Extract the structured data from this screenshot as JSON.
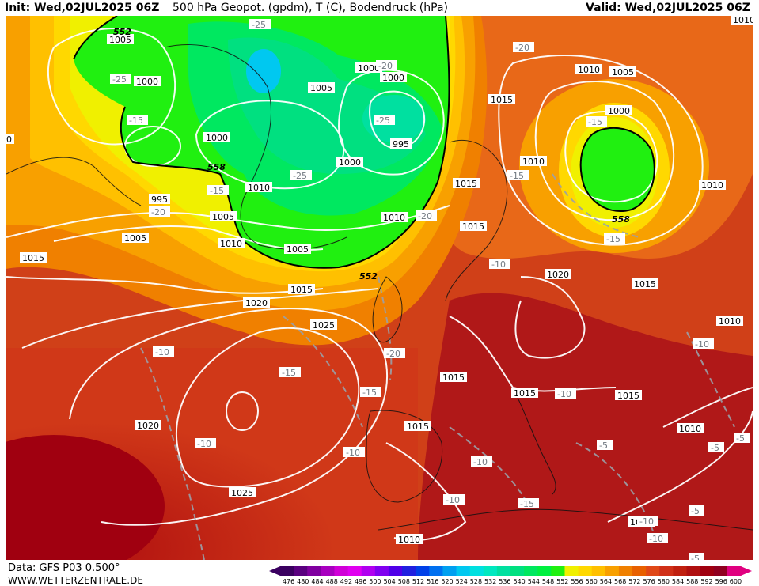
{
  "header": {
    "init": "Init: Wed,02JUL2025 06Z",
    "title": "500 hPa Geopot. (gpdm), T (C), Bodendruck (hPa)",
    "valid": "Valid: Wed,02JUL2025 06Z"
  },
  "footer": {
    "source": "Data: GFS P03 0.500°",
    "website": "WWW.WETTERZENTRALE.DE"
  },
  "legend": {
    "ticks": [
      "476",
      "480",
      "484",
      "488",
      "492",
      "496",
      "500",
      "504",
      "508",
      "512",
      "516",
      "520",
      "524",
      "528",
      "532",
      "536",
      "540",
      "544",
      "548",
      "552",
      "556",
      "560",
      "564",
      "568",
      "572",
      "576",
      "580",
      "584",
      "588",
      "592",
      "596",
      "600"
    ],
    "colors": [
      "#3a0060",
      "#5a0080",
      "#8000a0",
      "#a800c0",
      "#d000d8",
      "#e000f0",
      "#b000f0",
      "#8000f0",
      "#5000e8",
      "#2020e0",
      "#0040e8",
      "#0070f0",
      "#00a0f0",
      "#00c8f0",
      "#00e0e0",
      "#00e8c0",
      "#00e0a0",
      "#00e080",
      "#00e860",
      "#00f040",
      "#20f010",
      "#f0f000",
      "#ffd800",
      "#ffc000",
      "#f8a000",
      "#f08000",
      "#e86000",
      "#e04818",
      "#d03018",
      "#c02010",
      "#b01010",
      "#a00010",
      "#900020",
      "#e00080"
    ]
  },
  "map_labels": {
    "isobars": [
      "1005",
      "1000",
      "1000",
      "1000",
      "1005",
      "1000",
      "1010",
      "995",
      "1000",
      "1010",
      "1005",
      "1010",
      "1015",
      "1010",
      "995",
      "1005",
      "1010",
      "1005",
      "1015",
      "1015",
      "1020",
      "1025",
      "1015",
      "1020",
      "1010",
      "1015",
      "1015",
      "1015",
      "1015",
      "1020",
      "1025",
      "1015",
      "1010",
      "1015",
      "1010",
      "1005",
      "1000",
      "1010",
      "1015"
    ],
    "isotherms": [
      "-25",
      "-20",
      "-20",
      "-15",
      "-25",
      "-25",
      "-25",
      "-15",
      "-15",
      "-20",
      "-15",
      "-10",
      "-15",
      "-15",
      "-10",
      "-20",
      "-10",
      "-10",
      "-10",
      "-15",
      "-20",
      "-15",
      "-10",
      "-10",
      "-10",
      "-5",
      "-5",
      "-5",
      "-10",
      "-10",
      "-5",
      "-5"
    ],
    "geopotential": [
      "552",
      "558",
      "558",
      "552",
      "552"
    ],
    "edge": [
      "1010",
      "0"
    ]
  }
}
